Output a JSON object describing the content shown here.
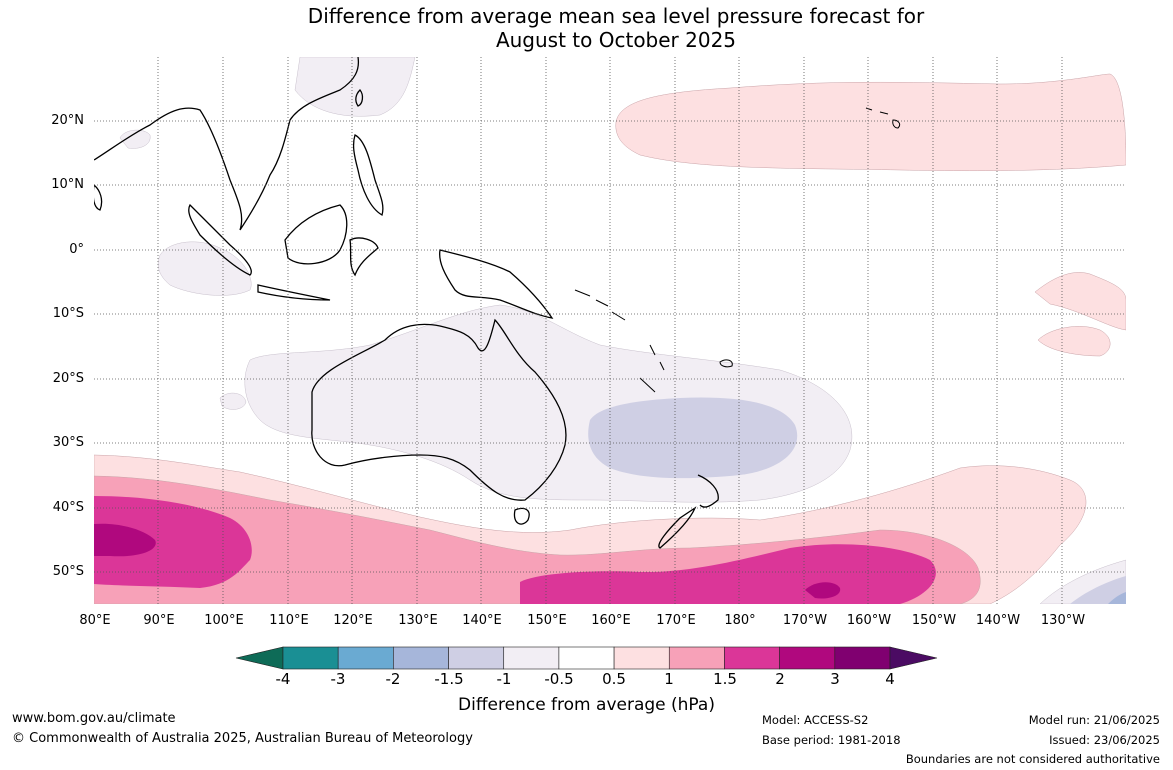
{
  "title": {
    "line1": "Difference from average mean sea level pressure forecast for",
    "line2": "August to October 2025"
  },
  "map": {
    "projection": "equirectangular",
    "lon_range": [
      80,
      235
    ],
    "lat_range": [
      -55,
      30
    ],
    "grid": true,
    "lat_labels": [
      "20°N",
      "10°N",
      "0°",
      "10°S",
      "20°S",
      "30°S",
      "40°S",
      "50°S"
    ],
    "lon_labels": [
      "80°E",
      "90°E",
      "100°E",
      "110°E",
      "120°E",
      "130°E",
      "140°E",
      "150°E",
      "160°E",
      "170°E",
      "180°",
      "170°W",
      "160°W",
      "150°W",
      "140°W",
      "130°W"
    ],
    "features": [
      {
        "name": "positive anomaly region north-east Pacific",
        "level": "0.5 to 1"
      },
      {
        "name": "negative anomaly region over Australia",
        "level": "-0.5 to -1"
      },
      {
        "name": "negative anomaly region Tasman Sea",
        "level": "-1 to -1.5"
      },
      {
        "name": "positive anomaly band Southern Ocean",
        "level": "0.5 to 3"
      }
    ]
  },
  "colorbar": {
    "title": "Difference from average (hPa)",
    "ticks": [
      "-4",
      "-3",
      "-2",
      "-1.5",
      "-1",
      "-0.5",
      "0.5",
      "1",
      "1.5",
      "2",
      "3",
      "4"
    ],
    "colors": [
      "#1a8f94",
      "#6aaad2",
      "#a6b6da",
      "#cfcfe4",
      "#f2eef4",
      "#ffffff",
      "#fde0e1",
      "#f7a1b8",
      "#db3698",
      "#b0087e",
      "#800070"
    ],
    "extend_low_color": "#0e6b57",
    "extend_high_color": "#4b0b63"
  },
  "footer": {
    "url": "www.bom.gov.au/climate",
    "copyright": "© Commonwealth of Australia 2025, Australian Bureau of Meteorology",
    "model": "Model: ACCESS-S2",
    "base_period": "Base period: 1981-2018",
    "model_run": "Model run: 21/06/2025",
    "issued": "Issued: 23/06/2025",
    "disclaimer": "Boundaries are not considered authoritative"
  }
}
